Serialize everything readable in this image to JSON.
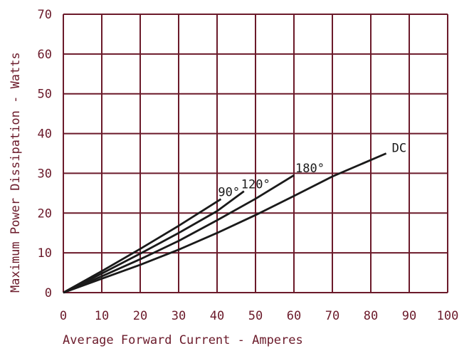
{
  "chart_data": {
    "type": "line",
    "title": "",
    "xlabel": "Average Forward Current - Amperes",
    "ylabel": "Maximum Power Dissipation - Watts",
    "xlim": [
      0,
      100
    ],
    "ylim": [
      0,
      70
    ],
    "x_ticks": [
      0,
      10,
      20,
      30,
      40,
      50,
      60,
      70,
      80,
      90,
      100
    ],
    "y_ticks": [
      0,
      10,
      20,
      30,
      40,
      50,
      60,
      70
    ],
    "grid": true,
    "legend": "inline labels at line ends",
    "colors": {
      "grid": "#6b1a2a",
      "line": "#1a1a1a",
      "text": "#6b1a2a"
    },
    "series": [
      {
        "name": "90°",
        "x": [
          0,
          10,
          20,
          30,
          41
        ],
        "y": [
          0,
          5.4,
          11,
          16.8,
          23.5
        ]
      },
      {
        "name": "120°",
        "x": [
          0,
          10,
          20,
          30,
          40,
          47
        ],
        "y": [
          0,
          4.8,
          9.8,
          15,
          20.5,
          25.5
        ]
      },
      {
        "name": "180°",
        "x": [
          0,
          10,
          20,
          30,
          40,
          50,
          60
        ],
        "y": [
          0,
          4.1,
          8.4,
          13,
          18.2,
          23.6,
          29.5
        ]
      },
      {
        "name": "DC",
        "x": [
          0,
          10,
          20,
          30,
          40,
          50,
          60,
          70,
          84
        ],
        "y": [
          0,
          3.5,
          7,
          10.8,
          15,
          19.5,
          24.3,
          29.2,
          35
        ]
      }
    ]
  }
}
